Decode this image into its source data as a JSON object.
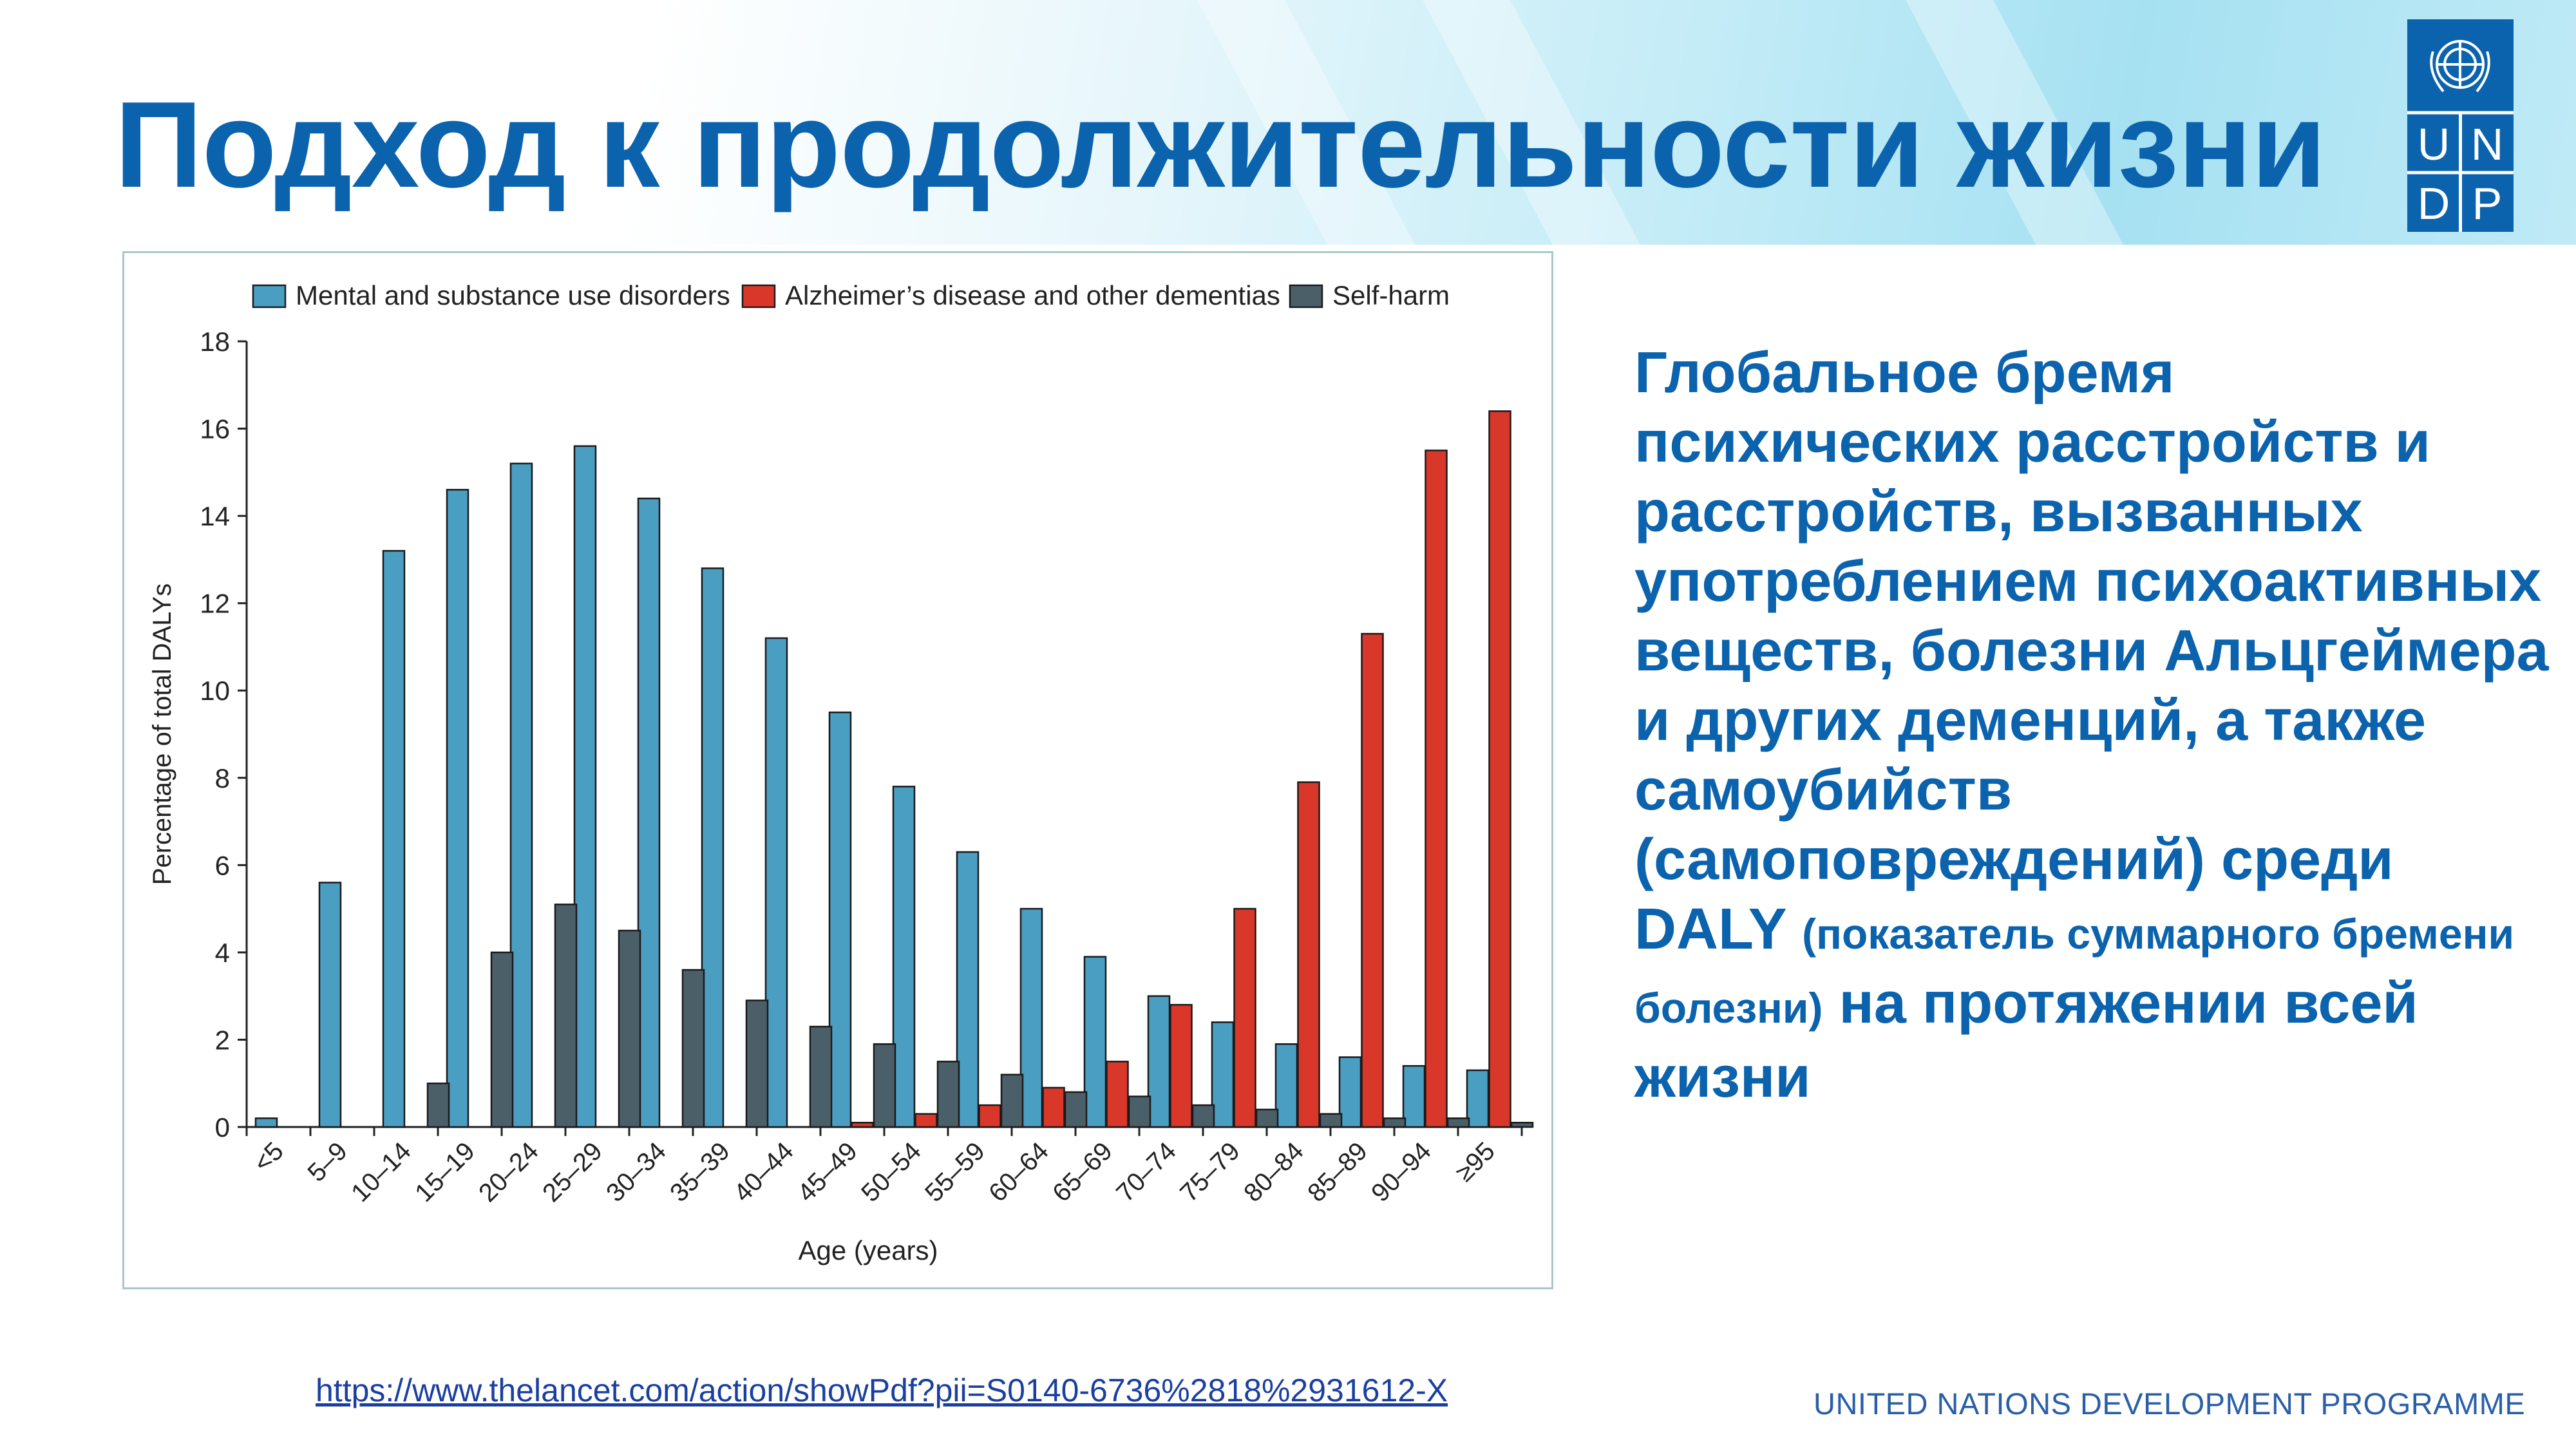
{
  "slide": {
    "title": "Подход к продолжительности жизни",
    "description_main": "Глобальное бремя психических расстройств и расстройств, вызванных употреблением психоактивных веществ, болезни Альцгеймера и других деменций, а также самоубийств (самоповреждений) среди DALY",
    "description_note": "(показатель суммарного бремени болезни)",
    "description_tail": "на протяжении всей жизни",
    "source_url": "https://www.thelancet.com/action/showPdf?pii=S0140-6736%2818%2931612-X",
    "footer": "UNITED NATIONS DEVELOPMENT PROGRAMME",
    "logo_letters": [
      "U",
      "N",
      "D",
      "P"
    ],
    "colors": {
      "accent": "#0b62ad",
      "mental": "#4a9ec2",
      "alzheimer": "#d9372a",
      "self_harm": "#4b5f69"
    }
  },
  "chart_data": {
    "type": "bar",
    "xlabel": "Age (years)",
    "ylabel": "Percentage of total DALYs",
    "ylim": [
      0,
      18
    ],
    "yticks": [
      0,
      2,
      4,
      6,
      8,
      10,
      12,
      14,
      16,
      18
    ],
    "legend_position": "top",
    "categories": [
      "<5",
      "5–9",
      "10–14",
      "15–19",
      "20–24",
      "25–29",
      "30–34",
      "35–39",
      "40–44",
      "45–49",
      "50–54",
      "55–59",
      "60–64",
      "65–69",
      "70–74",
      "75–79",
      "80–84",
      "85–89",
      "90–94",
      "≥95"
    ],
    "series": [
      {
        "name": "Mental and substance use disorders",
        "color": "#4a9ec2",
        "values": [
          0.2,
          5.6,
          13.2,
          14.6,
          15.2,
          15.6,
          14.4,
          12.8,
          11.2,
          9.5,
          7.8,
          6.3,
          5.0,
          3.9,
          3.0,
          2.4,
          1.9,
          1.6,
          1.4,
          1.3
        ]
      },
      {
        "name": "Alzheimer’s disease and other dementias",
        "color": "#d9372a",
        "values": [
          0,
          0,
          0,
          0,
          0,
          0,
          0,
          0,
          0,
          0.1,
          0.3,
          0.5,
          0.9,
          1.5,
          2.8,
          5.0,
          7.9,
          11.3,
          15.5,
          16.4
        ]
      },
      {
        "name": "Self-harm",
        "color": "#4b5f69",
        "values": [
          0,
          0,
          1.0,
          4.0,
          5.1,
          4.5,
          3.6,
          2.9,
          2.3,
          1.9,
          1.5,
          1.2,
          0.8,
          0.7,
          0.5,
          0.4,
          0.3,
          0.2,
          0.2,
          0.1
        ]
      }
    ]
  }
}
